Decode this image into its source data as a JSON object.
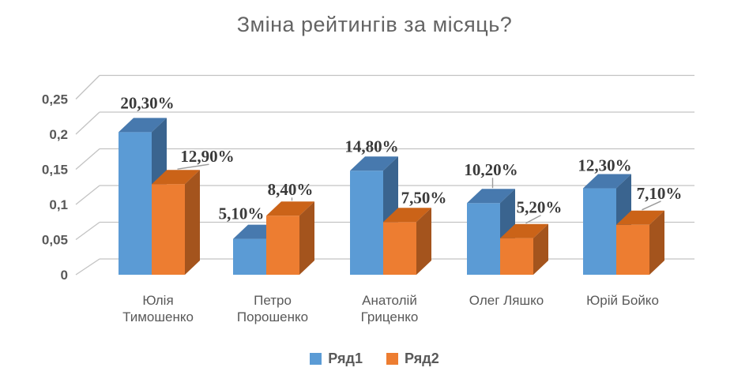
{
  "chart_data": {
    "type": "bar",
    "style": "3d-clustered-column",
    "title": "Зміна рейтингів за місяць?",
    "categories": [
      "Юлія Тимошенко",
      "Петро Порошенко",
      "Анатолій Гриценко",
      "Олег Ляшко",
      "Юрій Бойко"
    ],
    "category_label_lines": [
      [
        "Юлія",
        "Тимошенко"
      ],
      [
        "Петро",
        "Порошенко"
      ],
      [
        "Анатолій",
        "Гриценко"
      ],
      [
        "Олег Ляшко"
      ],
      [
        "Юрій Бойко"
      ]
    ],
    "series": [
      {
        "name": "Ряд1",
        "color": "#5B9BD5",
        "color_top": "#4779AE",
        "color_side": "#3A648F",
        "values": [
          0.203,
          0.051,
          0.148,
          0.102,
          0.123
        ],
        "data_labels": [
          "20,30%",
          "5,10%",
          "14,80%",
          "10,20%",
          "12,30%"
        ]
      },
      {
        "name": "Ряд2",
        "color": "#ED7D31",
        "color_top": "#CB6318",
        "color_side": "#A4541D",
        "values": [
          0.129,
          0.084,
          0.075,
          0.052,
          0.071
        ],
        "data_labels": [
          "12,90%",
          "8,40%",
          "7,50%",
          "5,20%",
          "7,10%"
        ]
      }
    ],
    "ylim": [
      0,
      0.25
    ],
    "y_ticks": [
      "0",
      "0,05",
      "0,1",
      "0,15",
      "0,2",
      "0,25"
    ],
    "grid": true,
    "legend_position": "bottom",
    "grid_color": "#C3C3C3",
    "leader_line_color": "#9B9B9B",
    "axis_text_color": "#595959"
  }
}
